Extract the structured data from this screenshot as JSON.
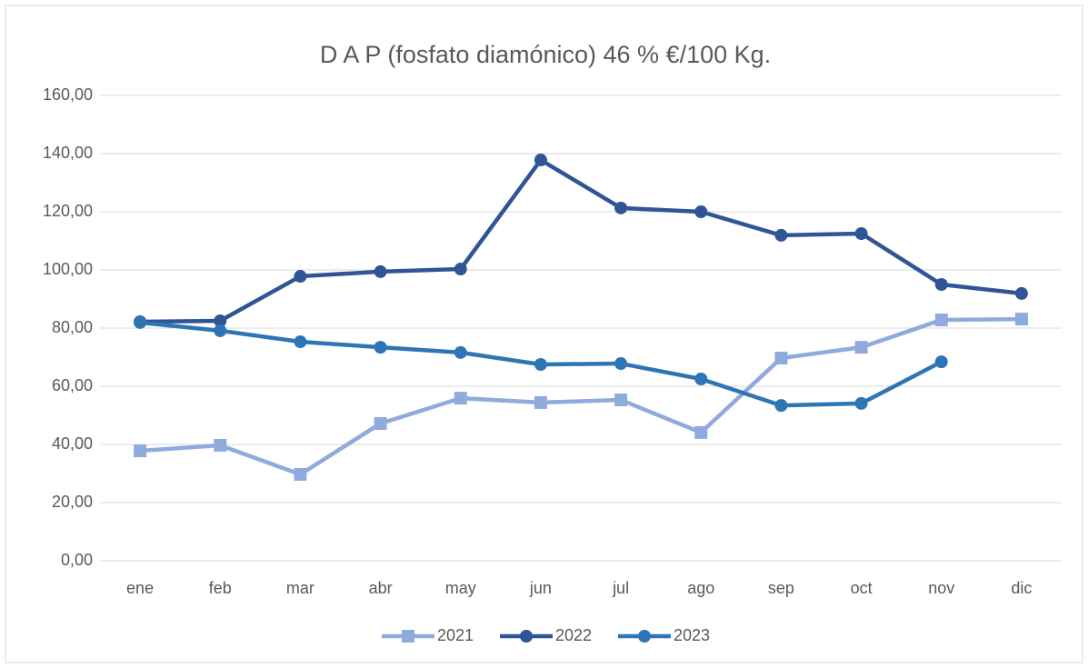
{
  "chart_data": {
    "type": "line",
    "title": "D A P (fosfato diamónico) 46 % €/100 Kg.",
    "categories": [
      "ene",
      "feb",
      "mar",
      "abr",
      "may",
      "jun",
      "jul",
      "ago",
      "sep",
      "oct",
      "nov",
      "dic"
    ],
    "series": [
      {
        "name": "2021",
        "color": "#8faadc",
        "marker": "square",
        "values": [
          37.8,
          39.7,
          29.7,
          47.2,
          55.9,
          54.4,
          55.3,
          44.1,
          69.7,
          73.4,
          82.8,
          83.1
        ]
      },
      {
        "name": "2022",
        "color": "#2f5597",
        "marker": "circle",
        "values": [
          82.2,
          82.5,
          97.8,
          99.4,
          100.3,
          137.8,
          121.3,
          120,
          111.9,
          112.5,
          95,
          91.9
        ]
      },
      {
        "name": "2023",
        "color": "#2e75b6",
        "marker": "circle",
        "values": [
          81.9,
          79.1,
          75.3,
          73.4,
          71.6,
          67.5,
          67.8,
          62.5,
          53.4,
          54.1,
          68.4,
          null
        ]
      }
    ],
    "ylim": [
      0,
      160
    ],
    "yticks": [
      {
        "value": 0,
        "label": "0,00"
      },
      {
        "value": 20,
        "label": "20,00"
      },
      {
        "value": 40,
        "label": "40,00"
      },
      {
        "value": 60,
        "label": "60,00"
      },
      {
        "value": 80,
        "label": "80,00"
      },
      {
        "value": 100,
        "label": "100,00"
      },
      {
        "value": 120,
        "label": "120,00"
      },
      {
        "value": 140,
        "label": "140,00"
      },
      {
        "value": 160,
        "label": "160,00"
      }
    ],
    "grid": true,
    "legend": "bottom"
  }
}
